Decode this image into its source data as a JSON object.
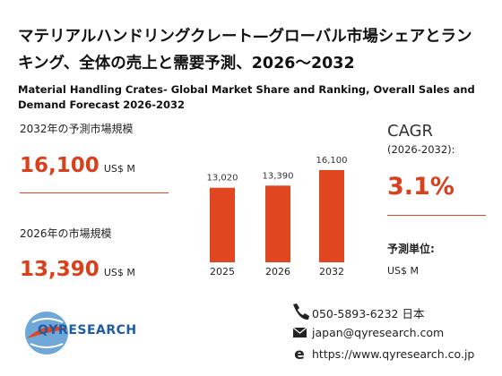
{
  "header": {
    "title": "マテリアルハンドリングクレート—グローバル市場シェアとランキング、全体の売上と需要予測、2026～2032",
    "subtitle": "Material Handling Crates- Global Market Share and Ranking, Overall Sales and Demand Forecast 2026-2032"
  },
  "stats": [
    {
      "label": "2032年の予測市場規模",
      "value": "16,100",
      "unit": "US$ M"
    },
    {
      "label": "2026年の市場規模",
      "value": "13,390",
      "unit": "US$ M"
    }
  ],
  "cagr": {
    "label": "CAGR",
    "period": "(2026-2032):",
    "value": "3.1%",
    "unit_label": "予測単位:",
    "unit": "US$ M"
  },
  "chart_data": {
    "type": "bar",
    "categories": [
      "2025",
      "2026",
      "2032"
    ],
    "values": [
      13020,
      13390,
      16100
    ],
    "value_labels": [
      "13,020",
      "13,390",
      "16,100"
    ],
    "color": "#e0461f"
  },
  "contact": {
    "phone": "050-5893-6232 日本",
    "email": "japan@qyresearch.com",
    "web": "https://www.qyresearch.co.jp"
  },
  "logo": "QYRESEARCH"
}
